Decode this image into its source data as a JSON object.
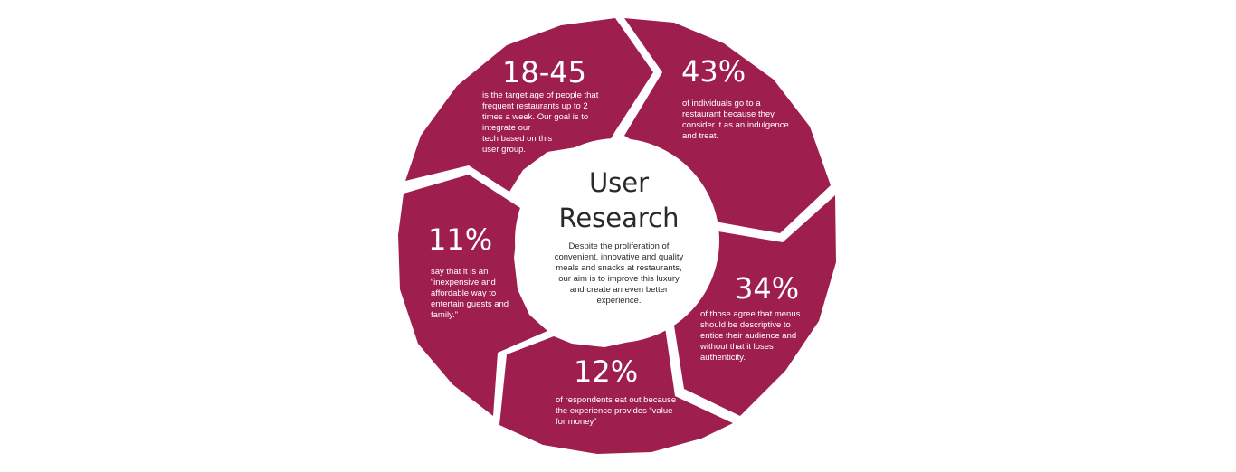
{
  "colors": {
    "segment": "#9e1f4e",
    "center_fill": "#ffffff",
    "background": "#ffffff",
    "center_text": "#2a2a2a"
  },
  "center": {
    "title_line1": "User",
    "title_line2": "Research",
    "body_lines": [
      "Despite the proliferation of",
      "convenient, innovative and quality",
      "meals and snacks at restaurants,",
      "our aim is to improve this luxury",
      "and create an even better",
      "experience."
    ]
  },
  "segments": [
    {
      "id": "age",
      "stat": "18-45",
      "lines": [
        "is the target age of people that",
        "frequent restaurants up to 2",
        "times a week. Our goal is to",
        "integrate our",
        "tech based on this",
        "user group."
      ]
    },
    {
      "id": "indulgence",
      "stat": "43%",
      "lines": [
        "of individuals go to a",
        "restaurant because they",
        "consider it as an indulgence",
        "and treat."
      ]
    },
    {
      "id": "menus",
      "stat": "34%",
      "lines": [
        "of those agree that menus",
        "should be descriptive to",
        "entice their audience and",
        "without that it loses",
        "authenticity."
      ]
    },
    {
      "id": "value",
      "stat": "12%",
      "lines": [
        "of respondents eat out because",
        "the experience provides “value",
        "for money”"
      ]
    },
    {
      "id": "guests",
      "stat": "11%",
      "lines": [
        "say that it is an",
        "“inexpensive and",
        "affordable way to",
        "entertain guests and",
        "family.”"
      ]
    }
  ]
}
